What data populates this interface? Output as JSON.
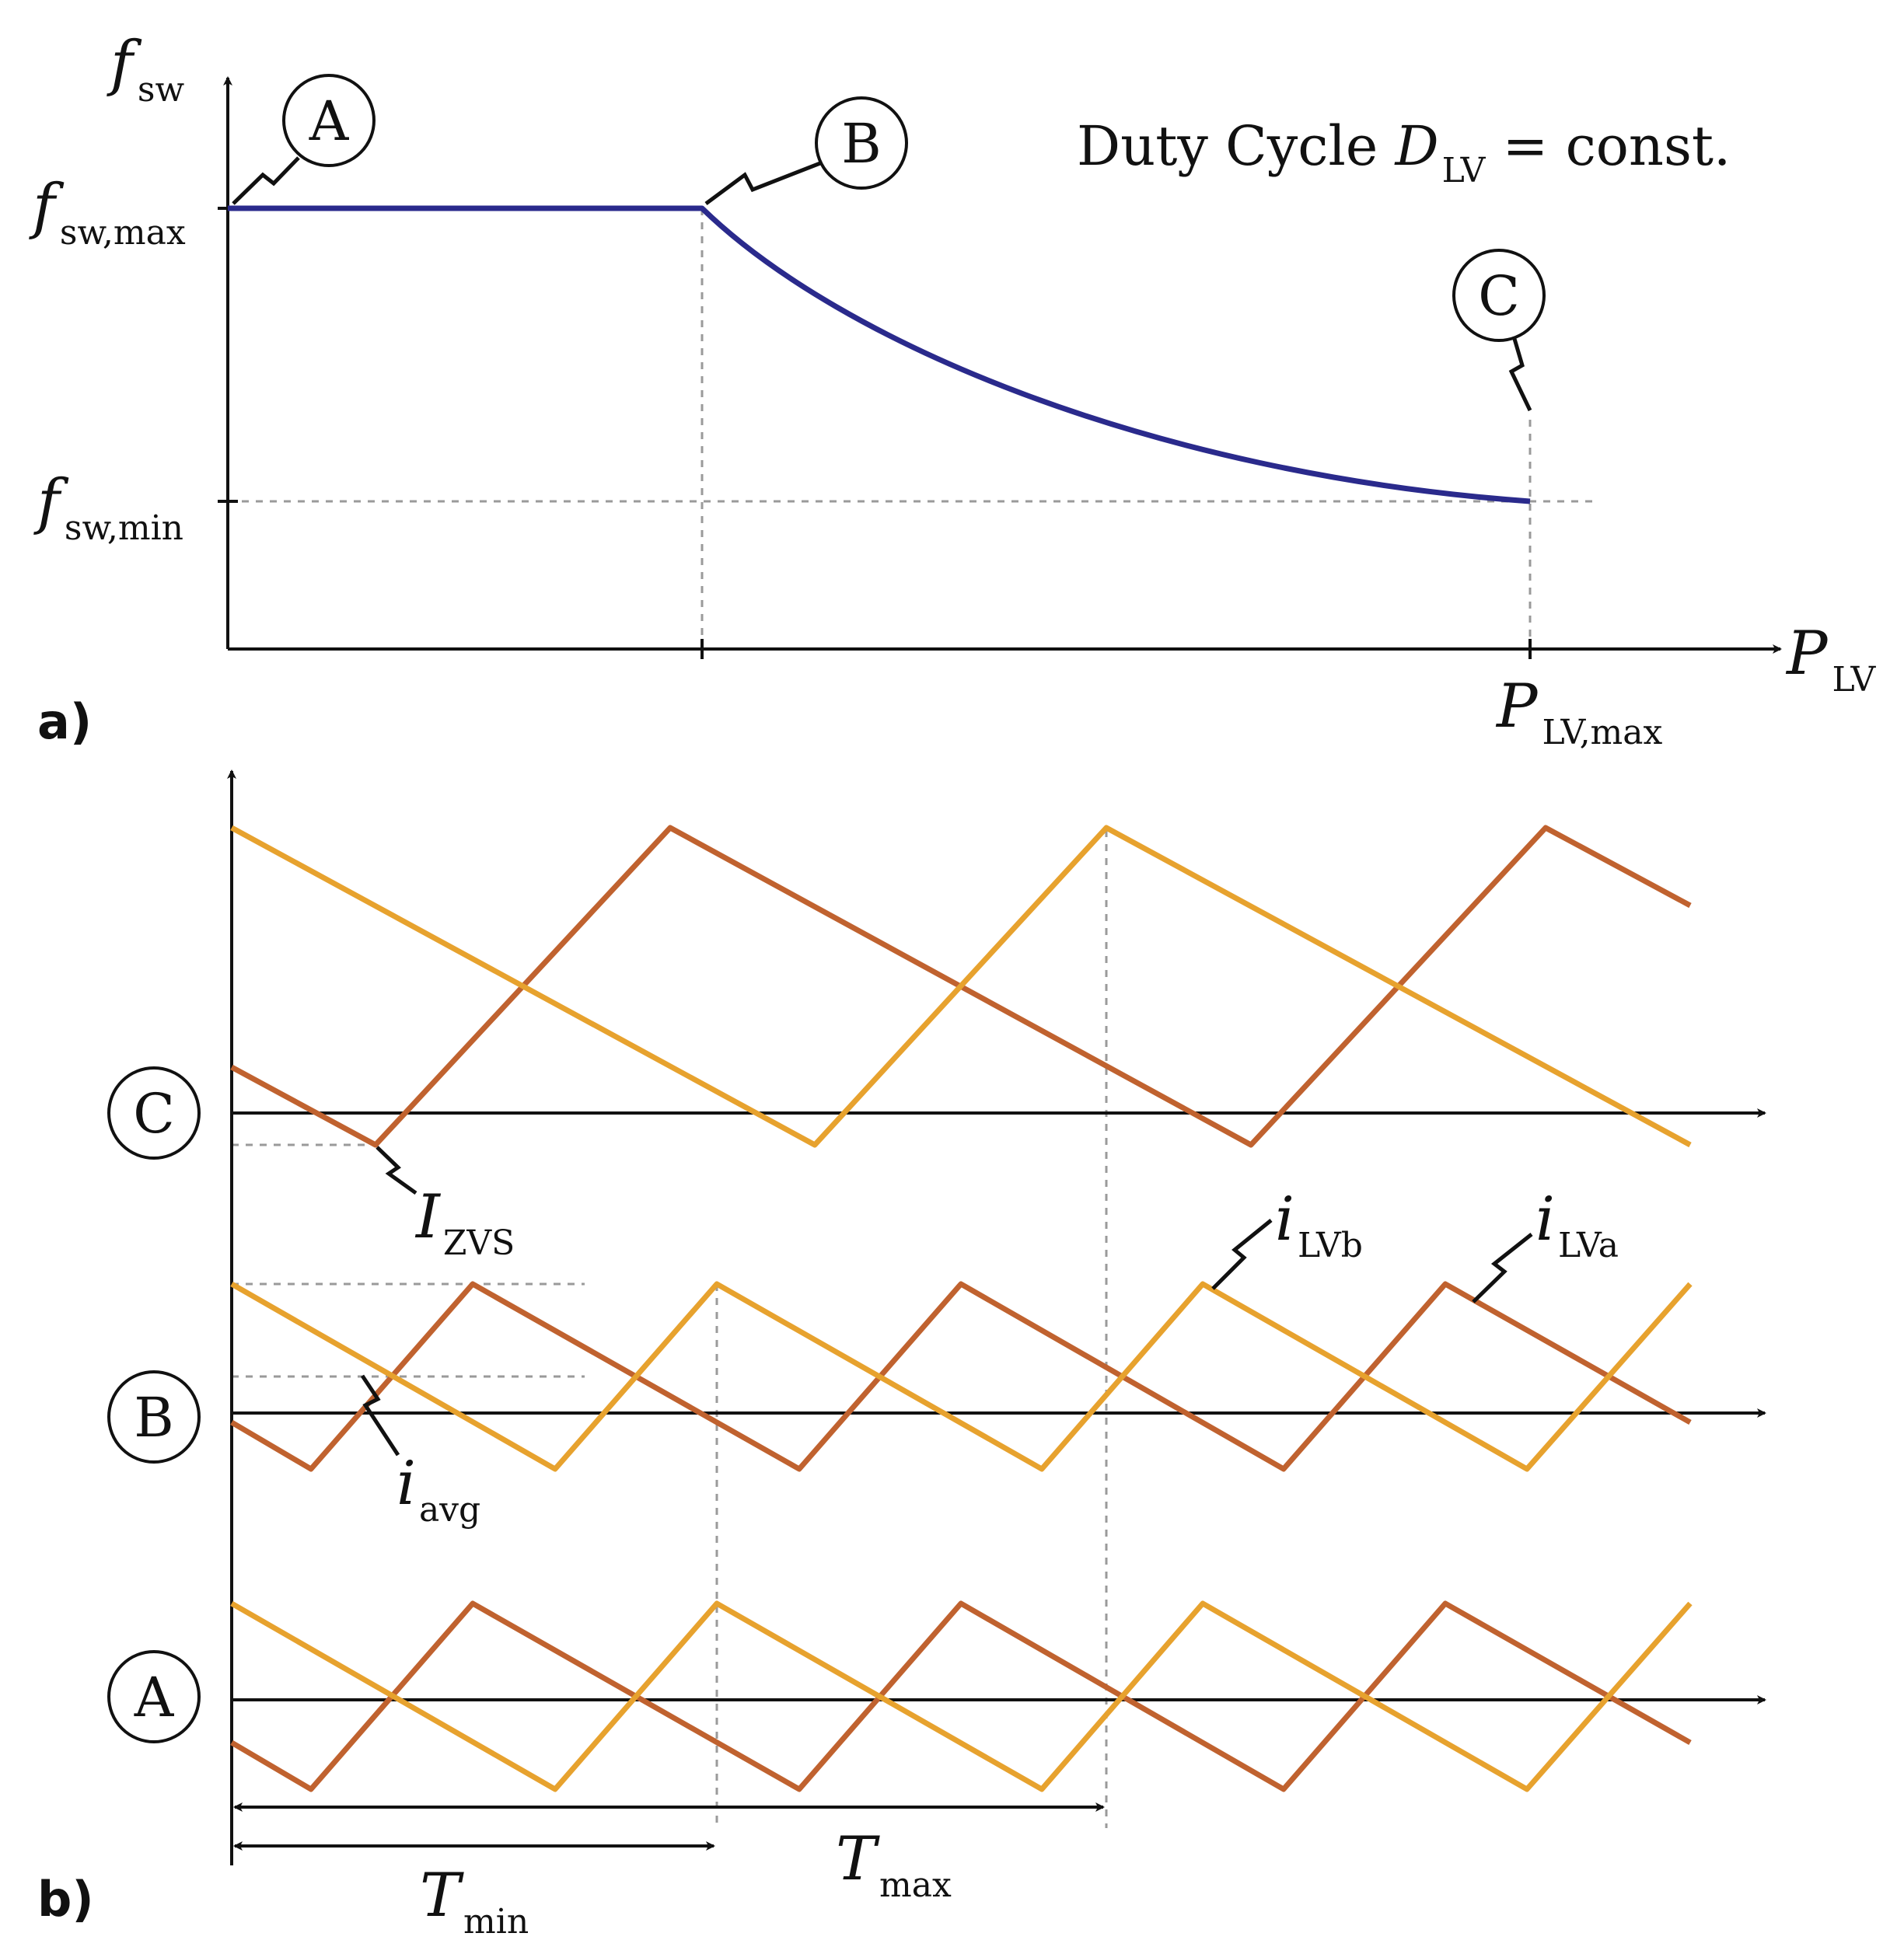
{
  "panel_a": {
    "panel_label": "a)",
    "y_axis_label": {
      "main": "f",
      "sub": "sw"
    },
    "x_axis_label": {
      "main": "P",
      "sub": "LV"
    },
    "y_tick_max": {
      "main": "f",
      "sub": "sw,max"
    },
    "y_tick_min": {
      "main": "f",
      "sub": "sw,min"
    },
    "x_tick_max": {
      "main": "P",
      "sub": "LV,max"
    },
    "annotation": {
      "prefix": "Duty Cycle ",
      "var": "D",
      "sub": "LV",
      "suffix": " = const."
    },
    "markers": [
      "A",
      "B",
      "C"
    ],
    "curve_color": "#2a2a8c"
  },
  "panel_b": {
    "panel_label": "b)",
    "rows": [
      "C",
      "B",
      "A"
    ],
    "i_zvs": {
      "main": "I",
      "sub": "ZVS"
    },
    "i_avg": {
      "main": "i",
      "sub": "avg"
    },
    "i_lvb": {
      "main": "i",
      "sub": "LVb"
    },
    "i_lva": {
      "main": "i",
      "sub": "LVa"
    },
    "t_min": {
      "main": "T",
      "sub": "min"
    },
    "t_max": {
      "main": "T",
      "sub": "max"
    },
    "color_lva": "#c0622f",
    "color_lvb": "#e7a22e"
  }
}
